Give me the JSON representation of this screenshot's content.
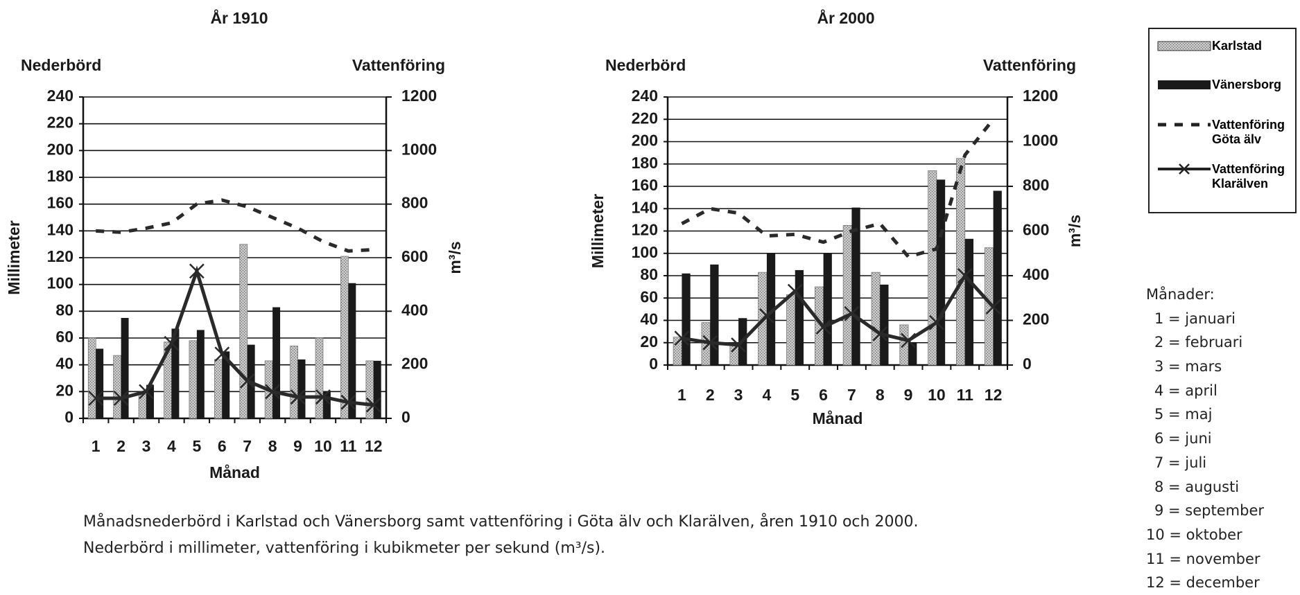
{
  "chart_data": [
    {
      "type": "bar",
      "title": "År 1910",
      "y_title_top": "Nederbörd",
      "y2_title_top": "Vattenföring",
      "y_label": "Millimeter",
      "y2_label": "m³/s",
      "x_label": "Månad",
      "categories": [
        "1",
        "2",
        "3",
        "4",
        "5",
        "6",
        "7",
        "8",
        "9",
        "10",
        "11",
        "12"
      ],
      "ylim": [
        0,
        240
      ],
      "yticks": [
        0,
        20,
        40,
        60,
        80,
        100,
        120,
        140,
        160,
        180,
        200,
        220,
        240
      ],
      "y2lim": [
        0,
        1200
      ],
      "y2ticks": [
        0,
        200,
        400,
        600,
        800,
        1000,
        1200
      ],
      "grid": true,
      "series": [
        {
          "name": "Karlstad",
          "color": "#c4c4c4",
          "kind": "bar",
          "values": [
            60,
            47,
            18,
            57,
            58,
            44,
            130,
            43,
            54,
            60,
            121,
            43
          ]
        },
        {
          "name": "Vänersborg",
          "color": "#1a1a1a",
          "kind": "bar",
          "values": [
            52,
            75,
            25,
            67,
            66,
            50,
            55,
            83,
            44,
            20,
            101,
            43
          ]
        },
        {
          "name": "Vattenföring Göta älv",
          "color": "#2a2a2a",
          "kind": "line",
          "line_style": "dashed",
          "axis": "y2",
          "values": [
            700,
            695,
            710,
            730,
            800,
            815,
            790,
            750,
            710,
            660,
            625,
            630
          ]
        },
        {
          "name": "Vattenföring Klarälven",
          "color": "#2a2a2a",
          "kind": "line",
          "line_style": "solid",
          "marker": "x",
          "axis": "y2",
          "values": [
            75,
            75,
            100,
            280,
            550,
            240,
            140,
            100,
            80,
            80,
            60,
            50
          ]
        }
      ]
    },
    {
      "type": "bar",
      "title": "År 2000",
      "y_title_top": "Nederbörd",
      "y2_title_top": "Vattenföring",
      "y_label": "Millimeter",
      "y2_label": "m³/s",
      "x_label": "Månad",
      "categories": [
        "1",
        "2",
        "3",
        "4",
        "5",
        "6",
        "7",
        "8",
        "9",
        "10",
        "11",
        "12"
      ],
      "ylim": [
        0,
        240
      ],
      "yticks": [
        0,
        20,
        40,
        60,
        80,
        100,
        120,
        140,
        160,
        180,
        200,
        220,
        240
      ],
      "y2lim": [
        0,
        1200
      ],
      "y2ticks": [
        0,
        200,
        400,
        600,
        800,
        1000,
        1200
      ],
      "grid": true,
      "series": [
        {
          "color": "#c4c4c4",
          "kind": "bar",
          "values": [
            25,
            38,
            18,
            83,
            63,
            70,
            125,
            83,
            36,
            174,
            185,
            105
          ]
        },
        {
          "color": "#1a1a1a",
          "kind": "bar",
          "values": [
            82,
            90,
            42,
            100,
            85,
            100,
            141,
            72,
            20,
            166,
            113,
            156
          ]
        },
        {
          "color": "#2a2a2a",
          "kind": "line",
          "line_style": "dashed",
          "axis": "y2",
          "values": [
            633,
            700,
            680,
            578,
            585,
            550,
            600,
            633,
            485,
            520,
            940,
            1100
          ]
        },
        {
          "color": "#2a2a2a",
          "kind": "line",
          "line_style": "solid",
          "marker": "x",
          "axis": "y2",
          "values": [
            120,
            100,
            90,
            220,
            330,
            170,
            230,
            140,
            110,
            190,
            400,
            260
          ]
        }
      ]
    }
  ],
  "month_key": {
    "title": "Månader:",
    "items": [
      "1 = januari",
      "2 = februari",
      "3 = mars",
      "4 = april",
      "5 = maj",
      "6 = juni",
      "7 = juli",
      "8 = augusti",
      "9 = september",
      "10 = oktober",
      "11 = november",
      "12 = december"
    ]
  },
  "caption": [
    "Månadsnederbörd i Karlstad och Vänersborg samt vattenföring i Göta älv och Klarälven, åren 1910 och 2000.",
    "Nederbörd i millimeter, vattenföring i kubikmeter per sekund (m³/s)."
  ]
}
